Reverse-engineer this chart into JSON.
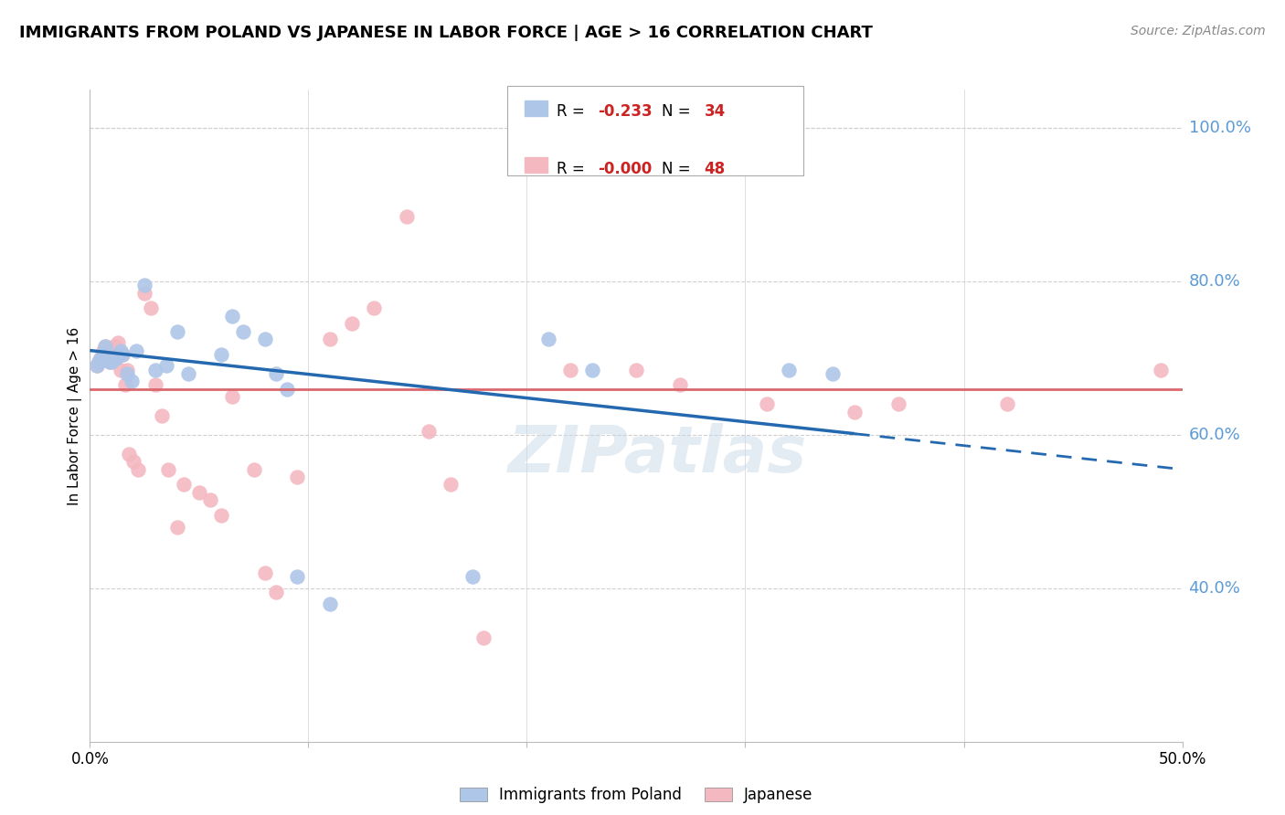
{
  "title": "IMMIGRANTS FROM POLAND VS JAPANESE IN LABOR FORCE | AGE > 16 CORRELATION CHART",
  "source": "Source: ZipAtlas.com",
  "ylabel": "In Labor Force | Age > 16",
  "xlim": [
    0.0,
    0.5
  ],
  "ylim": [
    0.2,
    1.05
  ],
  "yticks": [
    0.4,
    0.6,
    0.8,
    1.0
  ],
  "xticks": [
    0.0,
    0.1,
    0.2,
    0.3,
    0.4,
    0.5
  ],
  "ytick_labels": [
    "40.0%",
    "60.0%",
    "80.0%",
    "100.0%"
  ],
  "poland_color": "#aec6e8",
  "japanese_color": "#f4b8c1",
  "poland_line_color": "#2469b0",
  "japanese_line_color": "#d9696e",
  "watermark": "ZIPatlas",
  "poland_scatter_x": [
    0.003,
    0.004,
    0.005,
    0.006,
    0.007,
    0.008,
    0.009,
    0.01,
    0.011,
    0.012,
    0.013,
    0.014,
    0.015,
    0.017,
    0.019,
    0.021,
    0.025,
    0.03,
    0.035,
    0.04,
    0.045,
    0.06,
    0.065,
    0.07,
    0.08,
    0.085,
    0.09,
    0.095,
    0.11,
    0.175,
    0.21,
    0.23,
    0.32,
    0.34
  ],
  "poland_scatter_y": [
    0.69,
    0.695,
    0.7,
    0.705,
    0.715,
    0.7,
    0.695,
    0.695,
    0.7,
    0.7,
    0.705,
    0.71,
    0.705,
    0.68,
    0.67,
    0.71,
    0.795,
    0.685,
    0.69,
    0.735,
    0.68,
    0.705,
    0.755,
    0.735,
    0.725,
    0.68,
    0.66,
    0.415,
    0.38,
    0.415,
    0.725,
    0.685,
    0.685,
    0.68
  ],
  "japanese_scatter_x": [
    0.003,
    0.004,
    0.005,
    0.006,
    0.007,
    0.008,
    0.009,
    0.01,
    0.011,
    0.012,
    0.013,
    0.014,
    0.015,
    0.016,
    0.017,
    0.018,
    0.02,
    0.022,
    0.025,
    0.028,
    0.03,
    0.033,
    0.036,
    0.04,
    0.043,
    0.05,
    0.055,
    0.06,
    0.065,
    0.075,
    0.08,
    0.085,
    0.095,
    0.11,
    0.12,
    0.13,
    0.145,
    0.155,
    0.165,
    0.18,
    0.22,
    0.25,
    0.27,
    0.31,
    0.35,
    0.37,
    0.42,
    0.49
  ],
  "japanese_scatter_y": [
    0.69,
    0.695,
    0.7,
    0.71,
    0.715,
    0.7,
    0.695,
    0.7,
    0.715,
    0.7,
    0.72,
    0.685,
    0.705,
    0.665,
    0.685,
    0.575,
    0.565,
    0.555,
    0.785,
    0.765,
    0.665,
    0.625,
    0.555,
    0.48,
    0.535,
    0.525,
    0.515,
    0.495,
    0.65,
    0.555,
    0.42,
    0.395,
    0.545,
    0.725,
    0.745,
    0.765,
    0.885,
    0.605,
    0.535,
    0.335,
    0.685,
    0.685,
    0.665,
    0.64,
    0.63,
    0.64,
    0.64,
    0.685
  ],
  "poland_trend_x": [
    0.0,
    0.5
  ],
  "poland_trend_y": [
    0.71,
    0.555
  ],
  "japan_trend_y": 0.66,
  "background_color": "#ffffff",
  "grid_color": "#d0d0d0"
}
